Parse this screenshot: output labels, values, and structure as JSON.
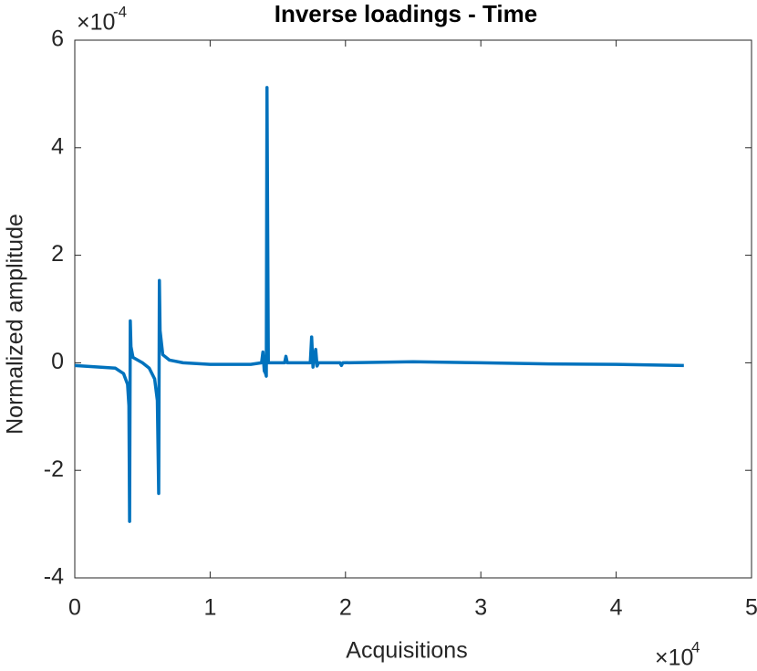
{
  "chart_data": {
    "type": "line",
    "title": "Inverse loadings - Time",
    "x_label": "Acquisitions",
    "y_label": "Normalized amplitude",
    "x_multiplier": {
      "base": "×10",
      "exponent": "4"
    },
    "y_multiplier": {
      "base": "×10",
      "exponent": "-4"
    },
    "xlim": [
      0,
      5
    ],
    "xticks": [
      0,
      1,
      2,
      3,
      4,
      5
    ],
    "ylim": [
      -4,
      6
    ],
    "yticks": [
      -4,
      -2,
      0,
      2,
      4,
      6
    ],
    "grid": false,
    "series": [
      {
        "color": "#0072bd",
        "x": [
          0,
          0.3,
          0.36,
          0.39,
          0.4,
          0.405,
          0.41,
          0.415,
          0.43,
          0.5,
          0.55,
          0.59,
          0.61,
          0.62,
          0.625,
          0.63,
          0.65,
          0.7,
          0.8,
          1.0,
          1.3,
          1.38,
          1.39,
          1.4,
          1.41,
          1.415,
          1.42,
          1.43,
          1.5,
          1.55,
          1.56,
          1.57,
          1.74,
          1.75,
          1.76,
          1.78,
          1.79,
          1.8,
          1.96,
          1.97,
          1.98,
          2.5,
          3.0,
          3.5,
          4.0,
          4.5
        ],
        "values": [
          -0.05,
          -0.1,
          -0.2,
          -0.4,
          -0.8,
          -2.95,
          0.78,
          0.3,
          0.1,
          0.0,
          -0.1,
          -0.3,
          -0.7,
          -2.43,
          1.53,
          0.6,
          0.15,
          0.05,
          0.0,
          -0.03,
          -0.03,
          0.0,
          0.2,
          -0.15,
          -0.2,
          -0.25,
          5.12,
          0.0,
          0.0,
          0.0,
          0.12,
          0.0,
          0.0,
          0.48,
          -0.08,
          0.25,
          -0.06,
          0.0,
          0.0,
          -0.05,
          0.0,
          0.02,
          0.0,
          -0.02,
          -0.03,
          -0.05
        ]
      }
    ]
  }
}
